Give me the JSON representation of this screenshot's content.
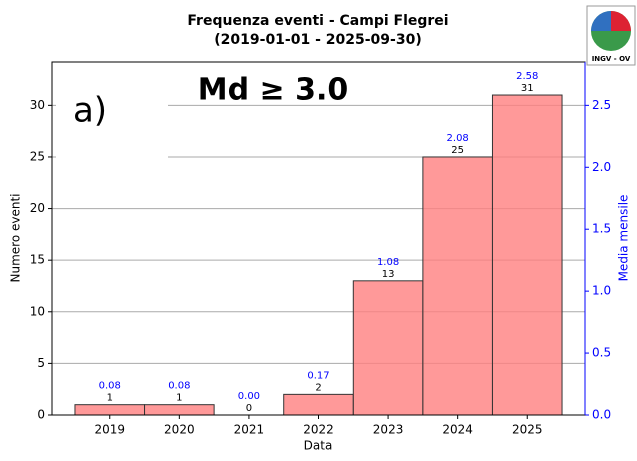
{
  "chart_data": {
    "type": "bar",
    "title": "Frequenza eventi - Campi Flegrei",
    "subtitle": "(2019-01-01 - 2025-09-30)",
    "annotation": "a)",
    "magnitude_label": "Md ≥ 3.0",
    "logo_text": "INGV - OV",
    "x_label": "Data",
    "y_label": "Numero eventi",
    "y2_label": "Media mensile",
    "x": [
      2019,
      2020,
      2021,
      2022,
      2023,
      2024,
      2025
    ],
    "xlim": [
      2018.17,
      2025.83
    ],
    "xticks": [
      2019,
      2020,
      2021,
      2022,
      2023,
      2024,
      2025
    ],
    "values": [
      1,
      1,
      0,
      2,
      13,
      25,
      31
    ],
    "color": "#ff8080",
    "means": [
      0.08,
      0.08,
      0,
      0.17,
      1.08,
      2.08,
      2.58
    ],
    "mean_labels": [
      "0.08",
      "0.08",
      "0.00",
      "0.17",
      "1.08",
      "2.08",
      "2.58"
    ],
    "mean_color": "#0000ff",
    "ylim": [
      0,
      34.2
    ],
    "yticks": [
      0,
      5,
      10,
      15,
      20,
      25,
      30
    ],
    "y2lim": [
      0,
      2.85
    ],
    "y2ticks": [
      {
        "value": 0,
        "label": "0.0"
      },
      {
        "value": 0.5,
        "label": "0.5"
      },
      {
        "value": 1,
        "label": "1.0"
      },
      {
        "value": 1.5,
        "label": "1.5"
      },
      {
        "value": 2,
        "label": "2.0"
      },
      {
        "value": 2.5,
        "label": "2.5"
      }
    ],
    "grid": true
  }
}
